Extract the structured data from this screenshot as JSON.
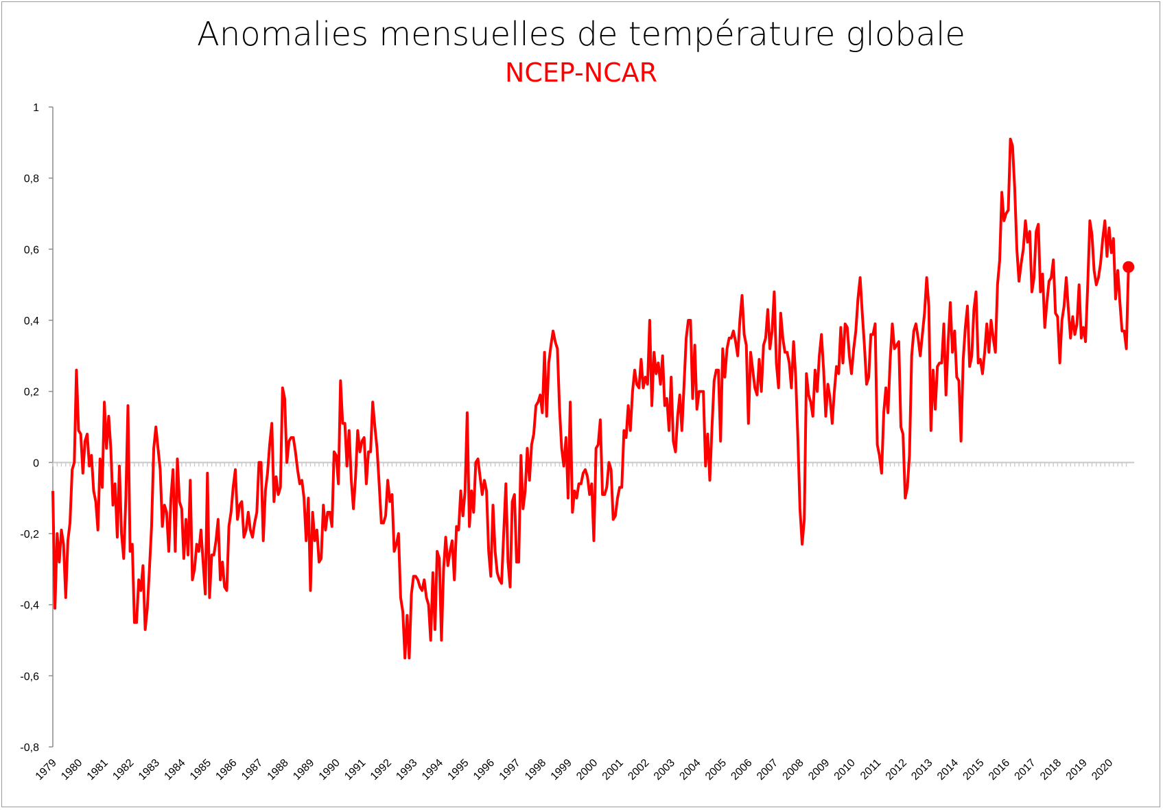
{
  "chart_data": {
    "type": "line",
    "title": "Anomalies mensuelles de température globale",
    "subtitle": "NCEP-NCAR",
    "xlabel": "",
    "ylabel": "",
    "ylim": [
      -0.8,
      1
    ],
    "y_ticks": [
      1,
      0.8,
      0.6,
      0.4,
      0.2,
      0,
      -0.2,
      -0.4,
      -0.6,
      -0.8
    ],
    "y_tick_labels": [
      "1",
      "0,8",
      "0,6",
      "0,4",
      "0,2",
      "0",
      "-0,2",
      "-0,4",
      "-0,6",
      "-0,8"
    ],
    "x_tick_labels": [
      "1979",
      "1980",
      "1981",
      "1982",
      "1983",
      "1984",
      "1985",
      "1986",
      "1987",
      "1988",
      "1989",
      "1990",
      "1991",
      "1992",
      "1993",
      "1994",
      "1995",
      "1996",
      "1997",
      "1998",
      "1999",
      "2000",
      "2001",
      "2002",
      "2003",
      "2004",
      "2005",
      "2006",
      "2007",
      "2008",
      "2009",
      "2010",
      "2011",
      "2012",
      "2013",
      "2014",
      "2015",
      "2016",
      "2017",
      "2018",
      "2019",
      "2020"
    ],
    "start": "1979-01",
    "frequency": "monthly",
    "grid": false,
    "legend": "none",
    "series": [
      {
        "name": "NCEP-NCAR",
        "color": "#ff0000",
        "last_point_marker": true,
        "values": [
          -0.08,
          -0.41,
          -0.2,
          -0.28,
          -0.19,
          -0.23,
          -0.38,
          -0.22,
          -0.17,
          -0.02,
          0.0,
          0.26,
          0.09,
          0.08,
          -0.03,
          0.06,
          0.08,
          -0.01,
          0.02,
          -0.08,
          -0.11,
          -0.19,
          0.01,
          -0.07,
          0.17,
          0.04,
          0.13,
          0.04,
          -0.12,
          -0.06,
          -0.21,
          -0.01,
          -0.2,
          -0.27,
          -0.1,
          0.16,
          -0.25,
          -0.23,
          -0.45,
          -0.45,
          -0.33,
          -0.36,
          -0.29,
          -0.47,
          -0.41,
          -0.3,
          -0.18,
          0.04,
          0.1,
          0.04,
          -0.02,
          -0.18,
          -0.12,
          -0.14,
          -0.25,
          -0.1,
          -0.02,
          -0.25,
          0.01,
          -0.11,
          -0.13,
          -0.27,
          -0.16,
          -0.26,
          -0.05,
          -0.33,
          -0.3,
          -0.23,
          -0.25,
          -0.19,
          -0.28,
          -0.37,
          -0.03,
          -0.38,
          -0.26,
          -0.26,
          -0.22,
          -0.16,
          -0.33,
          -0.28,
          -0.35,
          -0.36,
          -0.18,
          -0.14,
          -0.07,
          -0.02,
          -0.16,
          -0.12,
          -0.11,
          -0.21,
          -0.19,
          -0.14,
          -0.19,
          -0.21,
          -0.17,
          -0.14,
          0.0,
          0.0,
          -0.22,
          -0.08,
          -0.03,
          0.05,
          0.11,
          -0.11,
          -0.04,
          -0.09,
          -0.07,
          0.21,
          0.18,
          0.0,
          0.06,
          0.07,
          0.07,
          0.03,
          -0.02,
          -0.06,
          -0.05,
          -0.1,
          -0.22,
          -0.1,
          -0.36,
          -0.14,
          -0.22,
          -0.19,
          -0.28,
          -0.27,
          -0.12,
          -0.19,
          -0.14,
          -0.14,
          -0.18,
          0.03,
          0.02,
          -0.06,
          0.23,
          0.11,
          0.11,
          -0.01,
          0.09,
          -0.05,
          -0.13,
          -0.04,
          0.09,
          0.03,
          0.06,
          0.07,
          -0.06,
          0.03,
          0.03,
          0.17,
          0.1,
          0.04,
          -0.06,
          -0.17,
          -0.17,
          -0.15,
          -0.05,
          -0.11,
          -0.09,
          -0.25,
          -0.23,
          -0.2,
          -0.38,
          -0.42,
          -0.55,
          -0.43,
          -0.55,
          -0.37,
          -0.32,
          -0.32,
          -0.33,
          -0.35,
          -0.36,
          -0.33,
          -0.38,
          -0.4,
          -0.5,
          -0.31,
          -0.47,
          -0.25,
          -0.27,
          -0.5,
          -0.3,
          -0.21,
          -0.29,
          -0.25,
          -0.22,
          -0.33,
          -0.18,
          -0.19,
          -0.08,
          -0.15,
          -0.08,
          0.14,
          -0.18,
          -0.08,
          -0.14,
          0.0,
          0.01,
          -0.04,
          -0.09,
          -0.05,
          -0.08,
          -0.25,
          -0.32,
          -0.12,
          -0.25,
          -0.31,
          -0.33,
          -0.34,
          -0.2,
          -0.06,
          -0.28,
          -0.35,
          -0.11,
          -0.09,
          -0.28,
          -0.28,
          0.02,
          -0.13,
          -0.08,
          0.04,
          -0.05,
          0.05,
          0.08,
          0.16,
          0.17,
          0.19,
          0.14,
          0.31,
          0.13,
          0.28,
          0.33,
          0.37,
          0.34,
          0.32,
          0.15,
          0.04,
          -0.01,
          0.07,
          -0.1,
          0.17,
          -0.14,
          -0.08,
          -0.1,
          -0.06,
          -0.06,
          -0.03,
          -0.02,
          -0.04,
          -0.09,
          -0.06,
          -0.22,
          0.04,
          0.05,
          0.12,
          -0.09,
          -0.09,
          -0.07,
          0.0,
          -0.02,
          -0.16,
          -0.15,
          -0.1,
          -0.07,
          -0.07,
          0.09,
          0.07,
          0.16,
          0.09,
          0.2,
          0.26,
          0.22,
          0.21,
          0.29,
          0.21,
          0.24,
          0.22,
          0.4,
          0.16,
          0.31,
          0.25,
          0.28,
          0.22,
          0.3,
          0.16,
          0.18,
          0.09,
          0.24,
          0.06,
          0.03,
          0.13,
          0.19,
          0.09,
          0.22,
          0.35,
          0.4,
          0.4,
          0.18,
          0.33,
          0.15,
          0.2,
          0.2,
          0.2,
          -0.01,
          0.08,
          -0.05,
          0.1,
          0.23,
          0.26,
          0.26,
          0.06,
          0.32,
          0.24,
          0.32,
          0.35,
          0.35,
          0.37,
          0.34,
          0.3,
          0.4,
          0.47,
          0.36,
          0.33,
          0.11,
          0.31,
          0.26,
          0.21,
          0.19,
          0.29,
          0.2,
          0.33,
          0.35,
          0.43,
          0.32,
          0.37,
          0.48,
          0.28,
          0.21,
          0.42,
          0.35,
          0.31,
          0.31,
          0.28,
          0.21,
          0.34,
          0.24,
          0.07,
          -0.13,
          -0.23,
          -0.16,
          0.25,
          0.19,
          0.17,
          0.13,
          0.26,
          0.2,
          0.3,
          0.36,
          0.26,
          0.13,
          0.22,
          0.18,
          0.11,
          0.2,
          0.27,
          0.25,
          0.38,
          0.28,
          0.39,
          0.38,
          0.3,
          0.25,
          0.32,
          0.37,
          0.46,
          0.52,
          0.42,
          0.33,
          0.22,
          0.24,
          0.36,
          0.36,
          0.39,
          0.05,
          0.02,
          -0.03,
          0.14,
          0.21,
          0.14,
          0.29,
          0.39,
          0.32,
          0.33,
          0.34,
          0.1,
          0.08,
          -0.1,
          -0.07,
          0.02,
          0.3,
          0.37,
          0.39,
          0.35,
          0.3,
          0.36,
          0.42,
          0.52,
          0.44,
          0.09,
          0.26,
          0.15,
          0.27,
          0.28,
          0.28,
          0.39,
          0.19,
          0.34,
          0.45,
          0.31,
          0.37,
          0.24,
          0.23,
          0.06,
          0.29,
          0.38,
          0.44,
          0.27,
          0.3,
          0.43,
          0.48,
          0.28,
          0.29,
          0.25,
          0.31,
          0.39,
          0.31,
          0.4,
          0.35,
          0.31,
          0.5,
          0.57,
          0.76,
          0.68,
          0.7,
          0.71,
          0.91,
          0.89,
          0.77,
          0.6,
          0.51,
          0.56,
          0.6,
          0.68,
          0.62,
          0.65,
          0.48,
          0.52,
          0.65,
          0.67,
          0.48,
          0.53,
          0.38,
          0.45,
          0.51,
          0.52,
          0.57,
          0.42,
          0.41,
          0.28,
          0.4,
          0.44,
          0.52,
          0.43,
          0.35,
          0.41,
          0.36,
          0.39,
          0.5,
          0.35,
          0.38,
          0.34,
          0.5,
          0.68,
          0.64,
          0.54,
          0.5,
          0.52,
          0.56,
          0.63,
          0.68,
          0.58,
          0.66,
          0.59,
          0.63,
          0.46,
          0.54,
          0.45,
          0.37,
          0.37,
          0.32,
          0.55
        ]
      }
    ]
  }
}
